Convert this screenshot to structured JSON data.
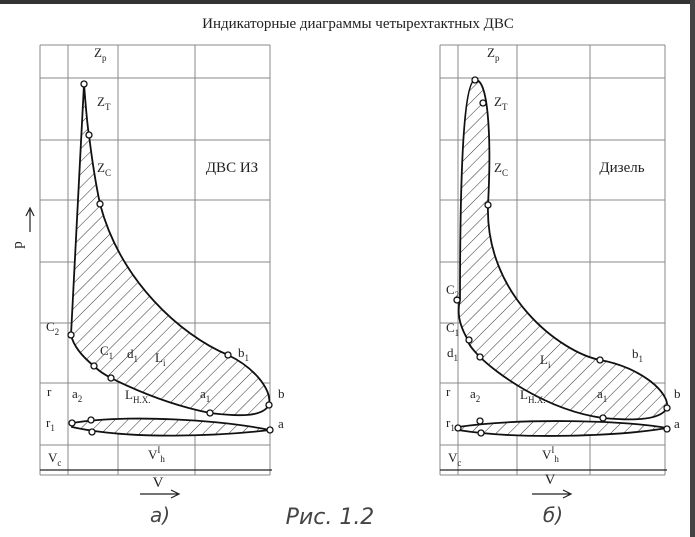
{
  "title": "Индикаторные диаграммы четырехтактных ДВС",
  "caption": "Рис. 1.2",
  "p_axis": "p",
  "panels": [
    {
      "tag": "а)",
      "name": "ДВС ИЗ",
      "v_axis": "V",
      "labels": [
        {
          "t": "Z",
          "s": "p"
        },
        {
          "t": "Z",
          "s": "T"
        },
        {
          "t": "Z",
          "s": "C"
        },
        {
          "t": "C",
          "s": "2"
        },
        {
          "t": "C",
          "s": "1"
        },
        {
          "t": "d",
          "s": "1"
        },
        {
          "t": "L",
          "s": "i"
        },
        {
          "t": "b",
          "s": "1"
        },
        {
          "t": "r"
        },
        {
          "t": "a",
          "s": "2"
        },
        {
          "t": "L",
          "s": "H.X."
        },
        {
          "t": "a",
          "s": "1"
        },
        {
          "t": "b"
        },
        {
          "t": "r",
          "s": "1"
        },
        {
          "t": "a"
        },
        {
          "t": "V",
          "s": "c"
        },
        {
          "t": "V",
          "p": "I",
          "s": "h"
        }
      ]
    },
    {
      "tag": "б)",
      "name": "Дизель",
      "v_axis": "V",
      "labels": [
        {
          "t": "Z",
          "s": "p"
        },
        {
          "t": "Z",
          "s": "T"
        },
        {
          "t": "Z",
          "s": "C"
        },
        {
          "t": "C",
          "s": "2"
        },
        {
          "t": "C",
          "s": "1"
        },
        {
          "t": "d",
          "s": "1"
        },
        {
          "t": "L",
          "s": "i"
        },
        {
          "t": "b",
          "s": "1"
        },
        {
          "t": "r"
        },
        {
          "t": "a",
          "s": "2"
        },
        {
          "t": "L",
          "s": "H.X."
        },
        {
          "t": "a",
          "s": "1"
        },
        {
          "t": "b"
        },
        {
          "t": "r",
          "s": "1"
        },
        {
          "t": "a"
        },
        {
          "t": "V",
          "s": "c"
        },
        {
          "t": "V",
          "p": "I",
          "s": "h"
        }
      ]
    }
  ]
}
